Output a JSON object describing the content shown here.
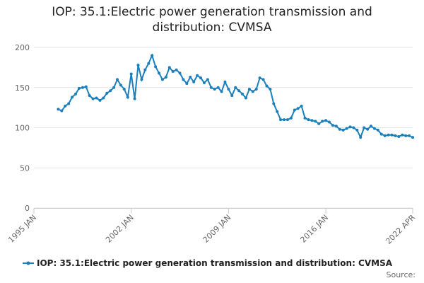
{
  "chart_data": {
    "type": "line",
    "title": "IOP: 35.1:Electric power generation transmission and distribution: CVMSA",
    "source": "Source:",
    "x": [
      "1996 OCT",
      "1997 JAN",
      "1997 APR",
      "1997 JUL",
      "1997 OCT",
      "1998 JAN",
      "1998 APR",
      "1998 JUL",
      "1998 OCT",
      "1999 JAN",
      "1999 APR",
      "1999 JUL",
      "1999 OCT",
      "2000 JAN",
      "2000 APR",
      "2000 JUL",
      "2000 OCT",
      "2001 JAN",
      "2001 APR",
      "2001 JUL",
      "2001 OCT",
      "2002 JAN",
      "2002 APR",
      "2002 JUL",
      "2002 OCT",
      "2003 JAN",
      "2003 APR",
      "2003 JUL",
      "2003 OCT",
      "2004 JAN",
      "2004 APR",
      "2004 JUL",
      "2004 OCT",
      "2005 JAN",
      "2005 APR",
      "2005 JUL",
      "2005 OCT",
      "2006 JAN",
      "2006 APR",
      "2006 JUL",
      "2006 OCT",
      "2007 JAN",
      "2007 APR",
      "2007 JUL",
      "2007 OCT",
      "2008 JAN",
      "2008 APR",
      "2008 JUL",
      "2008 OCT",
      "2009 JAN",
      "2009 APR",
      "2009 JUL",
      "2009 OCT",
      "2010 JAN",
      "2010 APR",
      "2010 JUL",
      "2010 OCT",
      "2011 JAN",
      "2011 APR",
      "2011 JUL",
      "2011 OCT",
      "2012 JAN",
      "2012 APR",
      "2012 JUL",
      "2012 OCT",
      "2013 JAN",
      "2013 APR",
      "2013 JUL",
      "2013 OCT",
      "2014 JAN",
      "2014 APR",
      "2014 JUL",
      "2014 OCT",
      "2015 JAN",
      "2015 APR",
      "2015 JUL",
      "2015 OCT",
      "2016 JAN",
      "2016 APR",
      "2016 JUL",
      "2016 OCT",
      "2017 JAN",
      "2017 APR",
      "2017 JUL",
      "2017 OCT",
      "2018 JAN",
      "2018 APR",
      "2018 JUL",
      "2018 OCT",
      "2019 JAN",
      "2019 APR",
      "2019 JUL",
      "2019 OCT",
      "2020 JAN",
      "2020 APR",
      "2020 JUL",
      "2020 OCT",
      "2021 JAN",
      "2021 APR",
      "2021 JUL",
      "2021 OCT",
      "2022 JAN",
      "2022 APR"
    ],
    "series": [
      {
        "name": "IOP: 35.1:Electric power generation transmission and distribution: CVMSA",
        "color": "#1a7fbd",
        "values": [
          123,
          121,
          127,
          130,
          138,
          142,
          149,
          150,
          151,
          140,
          136,
          137,
          134,
          137,
          143,
          146,
          150,
          160,
          153,
          148,
          138,
          167,
          136,
          178,
          160,
          172,
          180,
          190,
          176,
          168,
          160,
          163,
          175,
          170,
          172,
          168,
          160,
          155,
          163,
          157,
          165,
          162,
          156,
          160,
          150,
          148,
          150,
          145,
          157,
          148,
          140,
          150,
          146,
          142,
          137,
          148,
          145,
          148,
          162,
          160,
          152,
          148,
          130,
          120,
          110,
          110,
          110,
          112,
          122,
          124,
          127,
          112,
          110,
          109,
          108,
          105,
          108,
          109,
          107,
          103,
          102,
          98,
          97,
          99,
          101,
          100,
          97,
          88,
          100,
          98,
          102,
          99,
          97,
          92,
          90,
          91,
          91,
          90,
          89,
          91,
          90,
          90,
          88
        ]
      }
    ],
    "xlim": [
      "1995 JAN",
      "2022 APR"
    ],
    "xticks": [
      "1995 JAN",
      "2002 JAN",
      "2009 JAN",
      "2016 JAN",
      "2022 APR"
    ],
    "ylim": [
      0,
      200
    ],
    "yticks": [
      0,
      50,
      100,
      150,
      200
    ],
    "grid": true
  }
}
